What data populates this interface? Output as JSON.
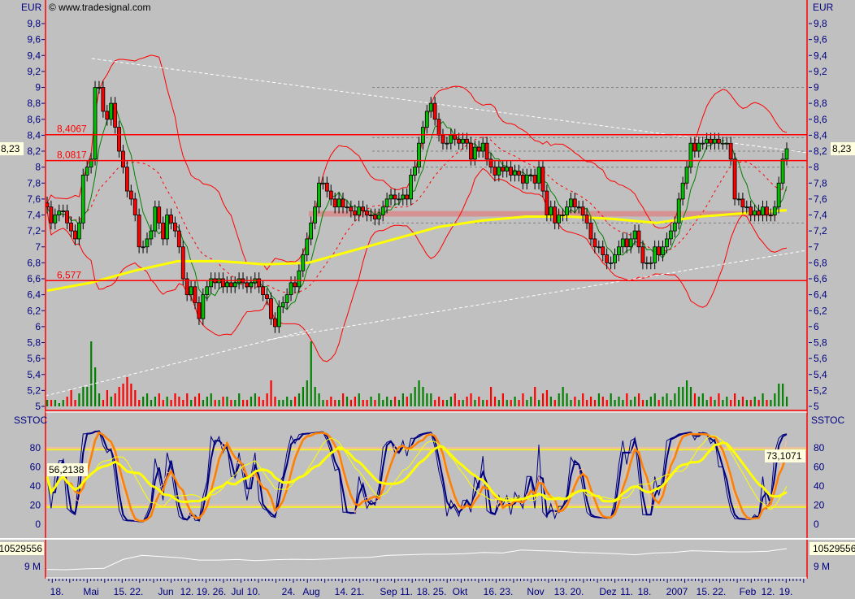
{
  "header": {
    "currency_left": "EUR",
    "currency_right": "EUR",
    "copyright": "© www.tradesignal.com"
  },
  "colors": {
    "background": "#c0c0c0",
    "axis_text": "#000080",
    "up_candle": "#00c000",
    "down_candle": "#ff0000",
    "bollinger": "#ff0000",
    "ma_long": "#ffff00",
    "ma_green": "#008000",
    "stoch_fast": "#000080",
    "stoch_slow": "#ff8000",
    "stoch_signal": "#ffff00",
    "level_lines": "#ff0000",
    "highlight_bg": "#ffffe0"
  },
  "chart_data": [
    {
      "type": "candlestick",
      "panel": "price",
      "ylabel": "EUR",
      "ylim": [
        5,
        9.8
      ],
      "y_ticks": [
        "5",
        "5,2",
        "5,4",
        "5,6",
        "5,8",
        "6",
        "6,2",
        "6,4",
        "6,6",
        "6,8",
        "7",
        "7,2",
        "7,4",
        "7,6",
        "7,8",
        "8",
        "8,2",
        "8,4",
        "8,6",
        "8,8",
        "9",
        "9,2",
        "9,4",
        "9,6",
        "9,8"
      ],
      "last_price_label": "8,23",
      "horizontal_levels": [
        {
          "value": 8.4067,
          "label": "8,4067"
        },
        {
          "value": 8.0817,
          "label": "8,0817"
        },
        {
          "value": 6.577,
          "label": "6,577"
        }
      ],
      "support_zone": [
        7.38,
        7.45
      ],
      "dashed_levels": [
        9.0,
        8.37,
        8.2,
        8.0,
        7.3
      ],
      "close": [
        7.5,
        7.3,
        7.4,
        7.45,
        7.45,
        7.3,
        7.2,
        7.1,
        7.3,
        7.9,
        8.0,
        8.1,
        9.0,
        9.0,
        8.7,
        8.6,
        8.8,
        8.5,
        8.2,
        8.0,
        7.7,
        7.6,
        7.4,
        7.0,
        7.0,
        7.1,
        7.2,
        7.5,
        7.3,
        7.1,
        7.4,
        7.3,
        7.2,
        7.0,
        6.6,
        6.4,
        6.5,
        6.3,
        6.1,
        6.4,
        6.5,
        6.6,
        6.55,
        6.6,
        6.5,
        6.55,
        6.5,
        6.55,
        6.6,
        6.55,
        6.5,
        6.55,
        6.6,
        6.5,
        6.4,
        6.35,
        6.1,
        6.0,
        6.25,
        6.3,
        6.4,
        6.55,
        6.5,
        6.7,
        6.9,
        7.1,
        7.3,
        7.5,
        7.8,
        7.8,
        7.7,
        7.6,
        7.5,
        7.6,
        7.5,
        7.5,
        7.45,
        7.4,
        7.5,
        7.45,
        7.4,
        7.4,
        7.35,
        7.4,
        7.5,
        7.6,
        7.65,
        7.6,
        7.6,
        7.65,
        7.6,
        7.9,
        8.0,
        8.3,
        8.5,
        8.7,
        8.8,
        8.6,
        8.4,
        8.3,
        8.3,
        8.4,
        8.35,
        8.3,
        8.35,
        8.3,
        8.1,
        8.25,
        8.2,
        8.3,
        8.1,
        8.0,
        7.9,
        8.0,
        7.95,
        8.0,
        7.9,
        7.95,
        7.9,
        7.8,
        7.9,
        7.9,
        7.8,
        8.0,
        7.7,
        7.4,
        7.5,
        7.3,
        7.4,
        7.4,
        7.5,
        7.6,
        7.5,
        7.5,
        7.4,
        7.3,
        7.1,
        7.0,
        7.0,
        6.9,
        6.8,
        6.8,
        6.9,
        7.0,
        7.1,
        7.0,
        7.1,
        7.2,
        7.0,
        6.8,
        6.8,
        6.8,
        7.0,
        6.9,
        7.0,
        7.1,
        7.2,
        7.3,
        7.6,
        7.8,
        8.0,
        8.3,
        8.2,
        8.3,
        8.3,
        8.35,
        8.3,
        8.35,
        8.3,
        8.3,
        8.3,
        8.1,
        7.6,
        7.6,
        7.5,
        7.5,
        7.4,
        7.45,
        7.4,
        7.5,
        7.4,
        7.4,
        7.5,
        7.8,
        8.1,
        8.23
      ],
      "volume_relative": [
        1,
        1,
        1,
        0.5,
        1,
        1.5,
        2.5,
        1,
        2,
        3,
        3,
        10,
        6,
        2,
        1,
        2.5,
        1.5,
        2,
        3,
        3.5,
        4.5,
        3.5,
        2.5,
        1,
        1.5,
        2,
        1,
        1.5,
        2,
        1,
        1.5,
        1,
        2,
        1.5,
        1,
        2,
        1,
        1.5,
        2,
        1,
        1.5,
        2,
        1,
        1,
        1.5,
        1.5,
        1,
        1,
        2,
        1,
        1,
        1.5,
        2,
        1.5,
        1,
        2,
        4,
        1.5,
        1,
        1,
        1.5,
        1,
        1.5,
        2,
        3,
        4,
        10,
        3,
        2,
        1,
        1,
        1.5,
        1,
        1,
        2,
        1.5,
        1,
        1.5,
        2,
        1,
        1,
        1.5,
        1,
        2,
        1,
        1.5,
        1,
        1.5,
        1,
        2,
        1.5,
        2,
        3,
        4,
        3,
        2,
        2,
        1,
        1.5,
        1,
        1,
        1.5,
        2,
        1,
        1,
        1.5,
        2,
        1,
        1.5,
        1,
        1,
        3,
        1.5,
        1,
        2,
        1,
        1,
        1.5,
        1,
        2,
        1,
        1.5,
        3,
        1,
        2,
        2.5,
        1.5,
        1,
        2,
        3,
        2,
        1,
        1.5,
        1,
        2,
        1,
        1.5,
        1,
        2,
        1.5,
        1,
        2,
        1,
        1.5,
        1,
        2,
        1,
        1.5,
        2,
        1,
        1,
        1.5,
        2,
        1,
        1.5,
        2,
        1,
        2,
        3,
        3,
        4,
        3,
        2,
        1.5,
        2,
        1,
        1.5,
        1,
        2,
        1,
        1.5,
        1,
        2,
        1,
        1.5,
        1,
        1,
        1.5,
        1,
        2,
        1,
        1,
        2,
        3.5,
        3.5,
        1.5
      ],
      "ma_long": [
        6.45,
        6.55,
        6.7,
        6.82,
        6.82,
        6.78,
        6.8,
        6.95,
        7.1,
        7.25,
        7.33,
        7.38,
        7.38,
        7.35,
        7.3,
        7.38,
        7.42,
        7.46
      ]
    },
    {
      "type": "line",
      "panel": "oscillator",
      "title": "SSTOC",
      "ylim": [
        -10,
        100
      ],
      "y_ticks": [
        "0",
        "20",
        "40",
        "60",
        "80"
      ],
      "levels": [
        20,
        80
      ],
      "last_value_left": "56,2138",
      "last_value_right": "73,1071"
    },
    {
      "type": "line",
      "panel": "cumulative-volume",
      "y_ticks": [
        "9 M"
      ],
      "last_value_label": "10529556",
      "values_millions": [
        8.75,
        8.72,
        8.8,
        8.85,
        9.6,
        9.95,
        9.85,
        9.75,
        9.55,
        9.55,
        9.6,
        9.5,
        9.58,
        9.62,
        9.6,
        9.65,
        9.75,
        9.78,
        9.95,
        10.0,
        10.05,
        10.05,
        10.1,
        10.2,
        10.15,
        10.4,
        10.35,
        10.3,
        10.2,
        10.15,
        10.1,
        10.0,
        10.15,
        10.2,
        10.35,
        10.3,
        10.25,
        10.25,
        10.3,
        10.53
      ]
    }
  ],
  "x_axis": {
    "labels": [
      "18.",
      "Mai",
      "15.",
      "22.",
      "Jun",
      "12.",
      "19.",
      "26.",
      "Jul",
      "10.",
      "24.",
      "Aug",
      "14.",
      "21.",
      "Sep",
      "11.",
      "18.",
      "25.",
      "Okt",
      "16.",
      "23.",
      "Nov",
      "13.",
      "20.",
      "Dez",
      "11.",
      "18.",
      "2007",
      "15.",
      "22.",
      "Feb",
      "12.",
      "19."
    ]
  }
}
